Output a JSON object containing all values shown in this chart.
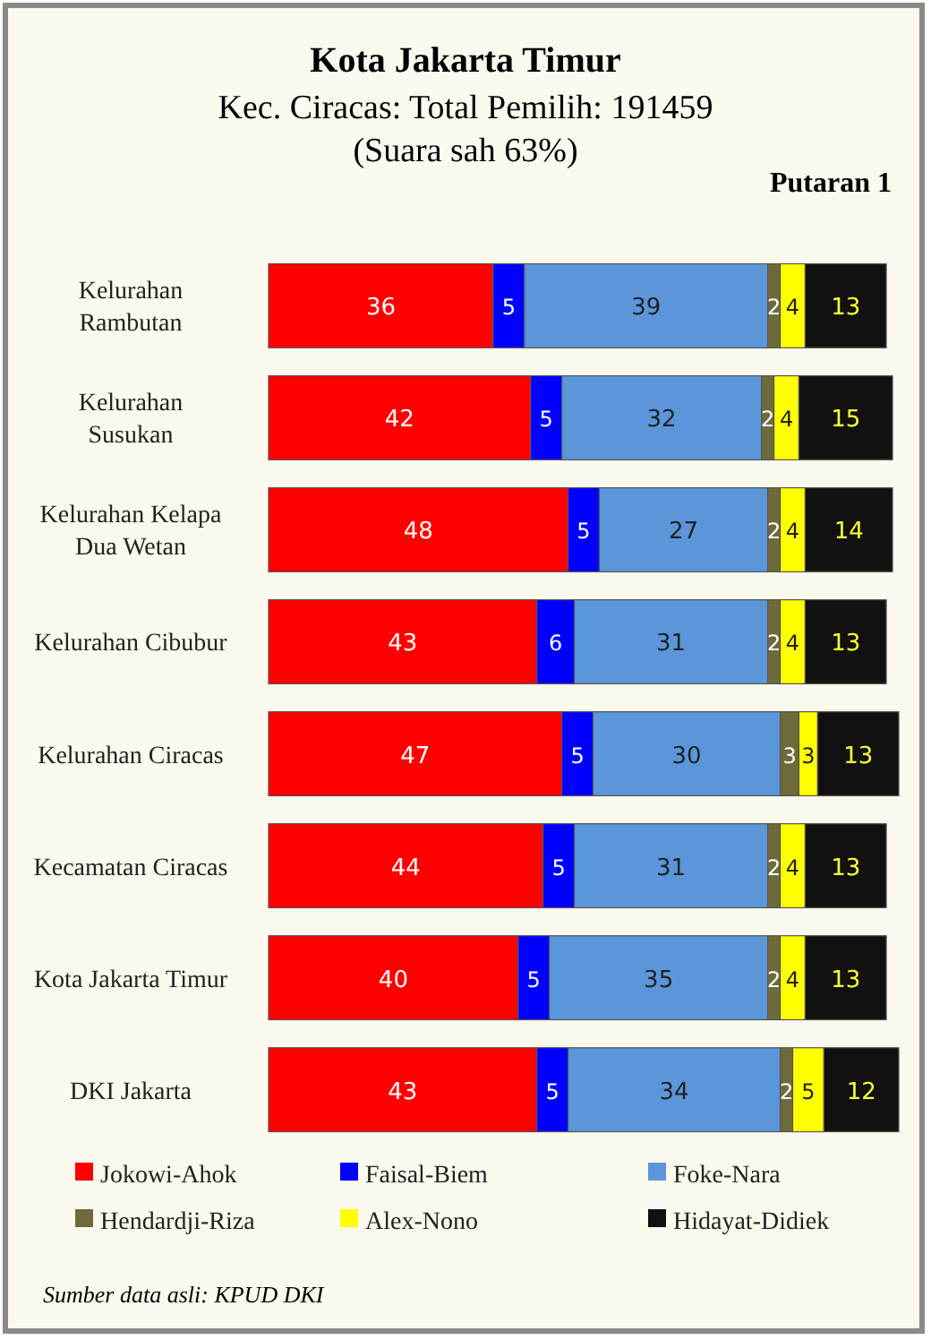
{
  "chart_data": {
    "type": "bar",
    "orientation": "horizontal",
    "stacked": true,
    "title": "Kota Jakarta Timur",
    "subtitle": "Kec. Ciracas: Total Pemilih: 191459\n(Suara sah 63%)",
    "annotations": [
      "Putaran 1",
      "Sumber data asli: KPUD DKI"
    ],
    "categories": [
      "Kelurahan\nRambutan",
      "Kelurahan\nSusukan",
      "Kelurahan Kelapa\nDua Wetan",
      "Kelurahan Cibubur",
      "Kelurahan Ciracas",
      "Kecamatan Ciracas",
      "Kota Jakarta Timur",
      "DKI Jakarta"
    ],
    "series": [
      {
        "name": "Jokowi-Ahok",
        "color": "#ff0000",
        "values": [
          36,
          42,
          48,
          43,
          47,
          44,
          40,
          43
        ]
      },
      {
        "name": "Faisal-Biem",
        "color": "#0000ff",
        "values": [
          5,
          5,
          5,
          6,
          5,
          5,
          5,
          5
        ]
      },
      {
        "name": "Foke-Nara",
        "color": "#5b96db",
        "values": [
          39,
          32,
          27,
          31,
          30,
          31,
          35,
          34
        ]
      },
      {
        "name": "Hendardji-Riza",
        "color": "#6e6a3c",
        "values": [
          2,
          2,
          2,
          2,
          3,
          2,
          2,
          2
        ]
      },
      {
        "name": "Alex-Nono",
        "color": "#ffff00",
        "values": [
          4,
          4,
          4,
          4,
          3,
          4,
          4,
          5
        ]
      },
      {
        "name": "Hidayat-Didiek",
        "color": "#111111",
        "values": [
          13,
          15,
          14,
          13,
          13,
          13,
          13,
          12
        ]
      }
    ],
    "data_labels": true,
    "legend": "bottom"
  }
}
